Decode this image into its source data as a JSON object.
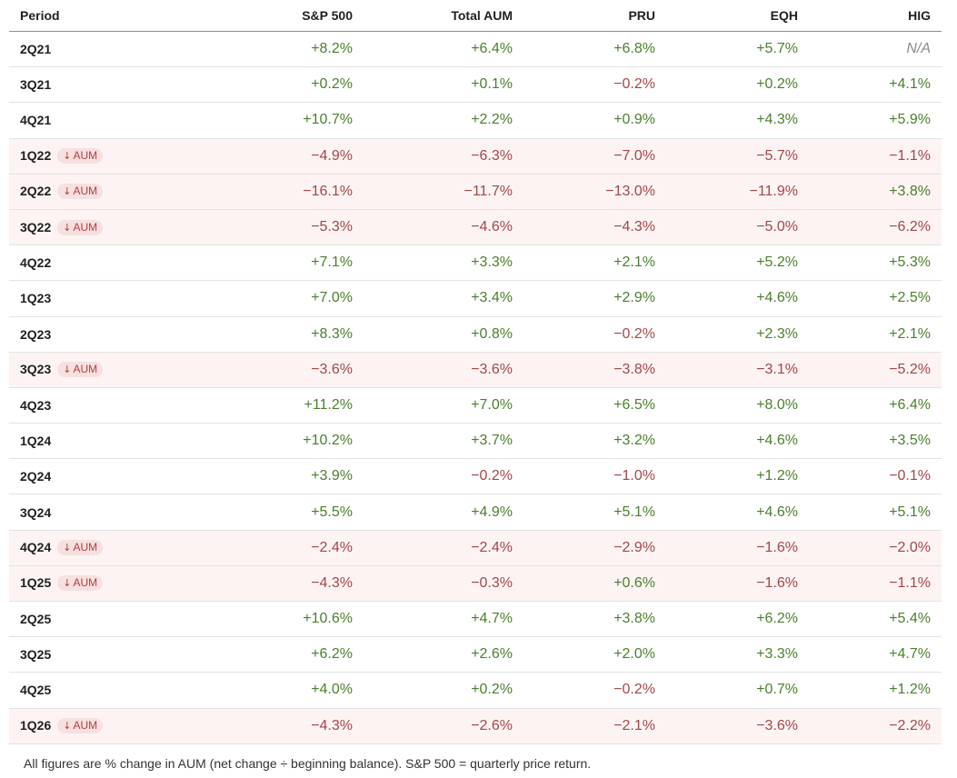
{
  "table": {
    "columns": [
      "Period",
      "S&P 500",
      "Total AUM",
      "PRU",
      "EQH",
      "HIG"
    ],
    "badge_label": "AUM",
    "rows": [
      {
        "period": "2Q21",
        "down": false,
        "values": [
          "+8.2%",
          "+6.4%",
          "+6.8%",
          "+5.7%",
          "N/A"
        ]
      },
      {
        "period": "3Q21",
        "down": false,
        "values": [
          "+0.2%",
          "+0.1%",
          "−0.2%",
          "+0.2%",
          "+4.1%"
        ]
      },
      {
        "period": "4Q21",
        "down": false,
        "values": [
          "+10.7%",
          "+2.2%",
          "+0.9%",
          "+4.3%",
          "+5.9%"
        ]
      },
      {
        "period": "1Q22",
        "down": true,
        "values": [
          "−4.9%",
          "−6.3%",
          "−7.0%",
          "−5.7%",
          "−1.1%"
        ]
      },
      {
        "period": "2Q22",
        "down": true,
        "values": [
          "−16.1%",
          "−11.7%",
          "−13.0%",
          "−11.9%",
          "+3.8%"
        ]
      },
      {
        "period": "3Q22",
        "down": true,
        "values": [
          "−5.3%",
          "−4.6%",
          "−4.3%",
          "−5.0%",
          "−6.2%"
        ]
      },
      {
        "period": "4Q22",
        "down": false,
        "values": [
          "+7.1%",
          "+3.3%",
          "+2.1%",
          "+5.2%",
          "+5.3%"
        ]
      },
      {
        "period": "1Q23",
        "down": false,
        "values": [
          "+7.0%",
          "+3.4%",
          "+2.9%",
          "+4.6%",
          "+2.5%"
        ]
      },
      {
        "period": "2Q23",
        "down": false,
        "values": [
          "+8.3%",
          "+0.8%",
          "−0.2%",
          "+2.3%",
          "+2.1%"
        ]
      },
      {
        "period": "3Q23",
        "down": true,
        "values": [
          "−3.6%",
          "−3.6%",
          "−3.8%",
          "−3.1%",
          "−5.2%"
        ]
      },
      {
        "period": "4Q23",
        "down": false,
        "values": [
          "+11.2%",
          "+7.0%",
          "+6.5%",
          "+8.0%",
          "+6.4%"
        ]
      },
      {
        "period": "1Q24",
        "down": false,
        "values": [
          "+10.2%",
          "+3.7%",
          "+3.2%",
          "+4.6%",
          "+3.5%"
        ]
      },
      {
        "period": "2Q24",
        "down": false,
        "values": [
          "+3.9%",
          "−0.2%",
          "−1.0%",
          "+1.2%",
          "−0.1%"
        ]
      },
      {
        "period": "3Q24",
        "down": false,
        "values": [
          "+5.5%",
          "+4.9%",
          "+5.1%",
          "+4.6%",
          "+5.1%"
        ]
      },
      {
        "period": "4Q24",
        "down": true,
        "values": [
          "−2.4%",
          "−2.4%",
          "−2.9%",
          "−1.6%",
          "−2.0%"
        ]
      },
      {
        "period": "1Q25",
        "down": true,
        "values": [
          "−4.3%",
          "−0.3%",
          "+0.6%",
          "−1.6%",
          "−1.1%"
        ]
      },
      {
        "period": "2Q25",
        "down": false,
        "values": [
          "+10.6%",
          "+4.7%",
          "+3.8%",
          "+6.2%",
          "+5.4%"
        ]
      },
      {
        "period": "3Q25",
        "down": false,
        "values": [
          "+6.2%",
          "+2.6%",
          "+2.0%",
          "+3.3%",
          "+4.7%"
        ]
      },
      {
        "period": "4Q25",
        "down": false,
        "values": [
          "+4.0%",
          "+0.2%",
          "−0.2%",
          "+0.7%",
          "+1.2%"
        ]
      },
      {
        "period": "1Q26",
        "down": true,
        "values": [
          "−4.3%",
          "−2.6%",
          "−2.1%",
          "−3.6%",
          "−2.2%"
        ]
      }
    ]
  },
  "colors": {
    "positive": "#4a7f2c",
    "negative": "#a34747",
    "na": "#8a8a8a",
    "down_row_bg": "#fdf3f3",
    "badge_bg": "#f7e0e0",
    "badge_text": "#b04040"
  },
  "icons": {
    "badge_arrow": "arrow-down-icon"
  },
  "footnote": "All figures are % change in AUM (net change ÷ beginning balance). S&P 500 = quarterly price return."
}
